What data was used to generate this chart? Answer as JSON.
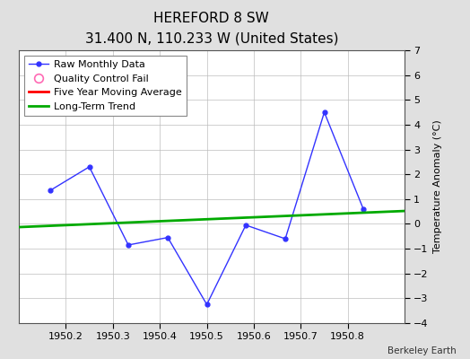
{
  "title": "HEREFORD 8 SW",
  "subtitle": "31.400 N, 110.233 W (United States)",
  "watermark": "Berkeley Earth",
  "raw_x": [
    1950.167,
    1950.25,
    1950.333,
    1950.417,
    1950.5,
    1950.583,
    1950.667,
    1950.75,
    1950.833
  ],
  "raw_y": [
    1.35,
    2.3,
    -0.85,
    -0.55,
    -3.25,
    -0.05,
    -0.6,
    4.5,
    0.6
  ],
  "trend_x": [
    1950.1,
    1950.92
  ],
  "trend_y": [
    -0.13,
    0.52
  ],
  "ylabel": "Temperature Anomaly (°C)",
  "xlim": [
    1950.1,
    1950.92
  ],
  "ylim": [
    -4,
    7
  ],
  "yticks": [
    -4,
    -3,
    -2,
    -1,
    0,
    1,
    2,
    3,
    4,
    5,
    6,
    7
  ],
  "xticks": [
    1950.2,
    1950.3,
    1950.4,
    1950.5,
    1950.6,
    1950.7,
    1950.8
  ],
  "raw_color": "#3333ff",
  "trend_color": "#00aa00",
  "mavg_color": "#ff0000",
  "qc_color": "#ff69b4",
  "bg_color": "#e0e0e0",
  "plot_bg_color": "#ffffff",
  "grid_color": "#bbbbbb",
  "title_fontsize": 11,
  "subtitle_fontsize": 9,
  "legend_fontsize": 8,
  "tick_fontsize": 8,
  "ylabel_fontsize": 8
}
